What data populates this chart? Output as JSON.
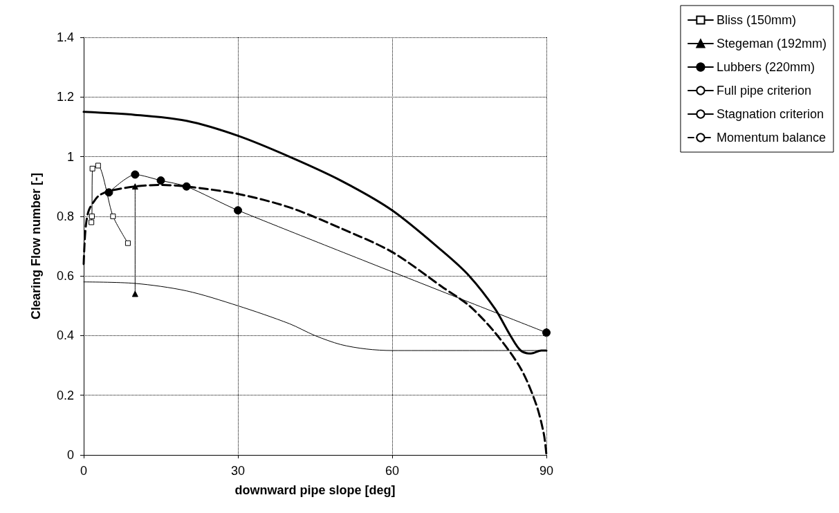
{
  "chart_data": {
    "type": "line",
    "xlabel": "downward pipe slope [deg]",
    "ylabel": "Clearing Flow number [-]",
    "xlim": [
      0,
      90
    ],
    "xticks": [
      0,
      30,
      60,
      90
    ],
    "ylim": [
      0,
      1.4
    ],
    "yticks": [
      0,
      0.2,
      0.4,
      0.6,
      0.8,
      1,
      1.2,
      1.4
    ],
    "grid": true,
    "legend": "top right",
    "series": [
      {
        "name": "Bliss (150mm)",
        "color": "#000000",
        "marker": "square",
        "line_style": "solid",
        "x": [
          1.5,
          1.6,
          1.7,
          2.8,
          5.7,
          8.6
        ],
        "values": [
          0.78,
          0.8,
          0.96,
          0.97,
          0.8,
          0.71
        ]
      },
      {
        "name": "Stegeman (192mm)",
        "color": "#000000",
        "marker": "triangle",
        "line_style": "solid",
        "x": [
          10,
          10
        ],
        "values": [
          0.9,
          0.54
        ]
      },
      {
        "name": "Lubbers (220mm)",
        "color": "#000000",
        "marker": "circle",
        "line_style": "solid",
        "x": [
          4.9,
          10,
          15,
          20,
          30,
          90
        ],
        "values": [
          0.88,
          0.94,
          0.92,
          0.9,
          0.82,
          0.41
        ]
      },
      {
        "name": "Full pipe criterion",
        "color": "#000000",
        "marker": "none",
        "line_style": "solid",
        "x": [
          0,
          10,
          20,
          30,
          40,
          50,
          60,
          70,
          75,
          80,
          83,
          85,
          87,
          89,
          90
        ],
        "values": [
          1.15,
          1.14,
          1.12,
          1.07,
          1,
          0.92,
          0.82,
          0.68,
          0.6,
          0.49,
          0.4,
          0.35,
          0.34,
          0.35,
          0.35
        ]
      },
      {
        "name": "Stagnation criterion",
        "color": "#000000",
        "marker": "none",
        "line_style": "solid",
        "x": [
          0,
          10,
          20,
          30,
          40,
          45,
          50,
          55,
          60,
          70,
          80,
          90
        ],
        "values": [
          0.58,
          0.575,
          0.55,
          0.5,
          0.44,
          0.4,
          0.37,
          0.355,
          0.35,
          0.35,
          0.35,
          0.35
        ]
      },
      {
        "name": "Momentum balance",
        "color": "#000000",
        "marker": "none",
        "line_style": "dashed",
        "x": [
          0,
          0.2,
          0.5,
          1,
          2,
          3,
          5,
          10,
          15,
          20,
          30,
          40,
          50,
          60,
          70,
          75,
          80,
          85,
          88,
          89.5,
          90
        ],
        "values": [
          0.64,
          0.72,
          0.78,
          0.82,
          0.85,
          0.87,
          0.885,
          0.9,
          0.905,
          0.9,
          0.875,
          0.83,
          0.76,
          0.68,
          0.56,
          0.5,
          0.41,
          0.29,
          0.17,
          0.07,
          0
        ]
      }
    ]
  }
}
